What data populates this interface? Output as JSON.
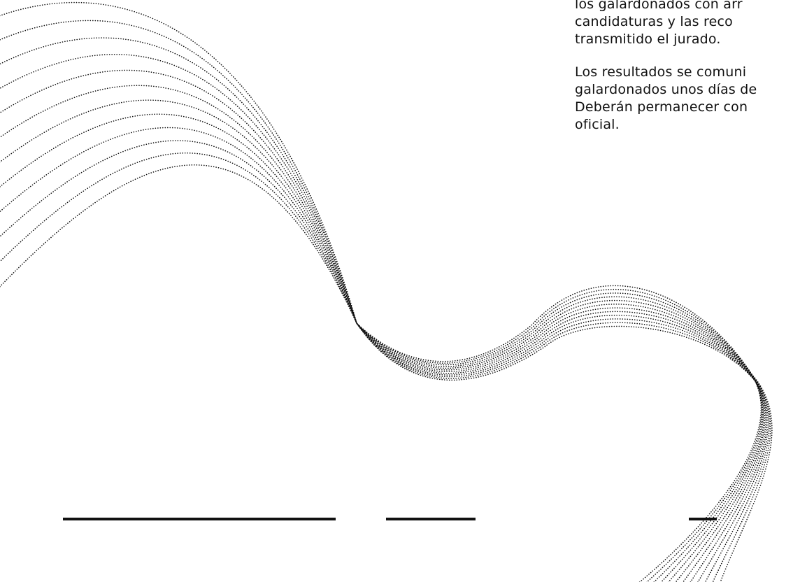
{
  "text_column": {
    "paragraph_1": [
      "los galardonados con arr",
      "candidaturas y las reco",
      "transmitido el jurado."
    ],
    "paragraph_2": [
      "Los resultados se comuni",
      "galardonados unos días de",
      "Deberán permanecer con",
      "oficial."
    ]
  },
  "colors": {
    "text": "#111111",
    "background": "#ffffff",
    "wave_dots": "#111111"
  },
  "icons": {
    "background_art": "dotted-wave-art"
  }
}
